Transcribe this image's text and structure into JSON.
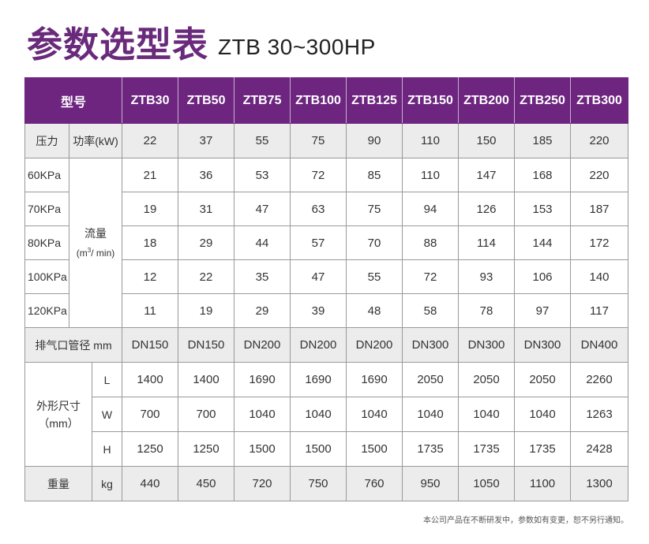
{
  "title": {
    "cn": "参数选型表",
    "en": "ZTB 30~300HP"
  },
  "header": {
    "label": "型号",
    "models": [
      "ZTB30",
      "ZTB50",
      "ZTB75",
      "ZTB100",
      "ZTB125",
      "ZTB150",
      "ZTB200",
      "ZTB250",
      "ZTB300"
    ]
  },
  "pressure": {
    "label": "压力",
    "power_label": "功率(kW)",
    "values": [
      "22",
      "37",
      "55",
      "75",
      "90",
      "110",
      "150",
      "185",
      "220"
    ]
  },
  "flow": {
    "label": "流量",
    "unit_pre": "(m",
    "unit_sup": "3",
    "unit_post": "/ min)",
    "rows": [
      {
        "pressure": "60KPa",
        "values": [
          "21",
          "36",
          "53",
          "72",
          "85",
          "110",
          "147",
          "168",
          "220"
        ]
      },
      {
        "pressure": "70KPa",
        "values": [
          "19",
          "31",
          "47",
          "63",
          "75",
          "94",
          "126",
          "153",
          "187"
        ]
      },
      {
        "pressure": "80KPa",
        "values": [
          "18",
          "29",
          "44",
          "57",
          "70",
          "88",
          "114",
          "144",
          "172"
        ]
      },
      {
        "pressure": "100KPa",
        "values": [
          "12",
          "22",
          "35",
          "47",
          "55",
          "72",
          "93",
          "106",
          "140"
        ]
      },
      {
        "pressure": "120KPa",
        "values": [
          "11",
          "19",
          "29",
          "39",
          "48",
          "58",
          "78",
          "97",
          "117"
        ]
      }
    ]
  },
  "exhaust": {
    "label": "排气口管径 mm",
    "values": [
      "DN150",
      "DN150",
      "DN200",
      "DN200",
      "DN200",
      "DN300",
      "DN300",
      "DN300",
      "DN400"
    ]
  },
  "dimensions": {
    "label": "外形尺寸",
    "unit": "（mm）",
    "rows": [
      {
        "axis": "L",
        "values": [
          "1400",
          "1400",
          "1690",
          "1690",
          "1690",
          "2050",
          "2050",
          "2050",
          "2260"
        ]
      },
      {
        "axis": "W",
        "values": [
          "700",
          "700",
          "1040",
          "1040",
          "1040",
          "1040",
          "1040",
          "1040",
          "1263"
        ]
      },
      {
        "axis": "H",
        "values": [
          "1250",
          "1250",
          "1500",
          "1500",
          "1500",
          "1735",
          "1735",
          "1735",
          "2428"
        ]
      }
    ]
  },
  "weight": {
    "label": "重量",
    "unit": "kg",
    "values": [
      "440",
      "450",
      "720",
      "750",
      "760",
      "950",
      "1050",
      "1100",
      "1300"
    ]
  },
  "footnote": "本公司产品在不断研发中，参数如有变更，恕不另行通知。",
  "colors": {
    "accent": "#6d2580",
    "title": "#6a2a7b",
    "row_grey": "#ececec"
  }
}
